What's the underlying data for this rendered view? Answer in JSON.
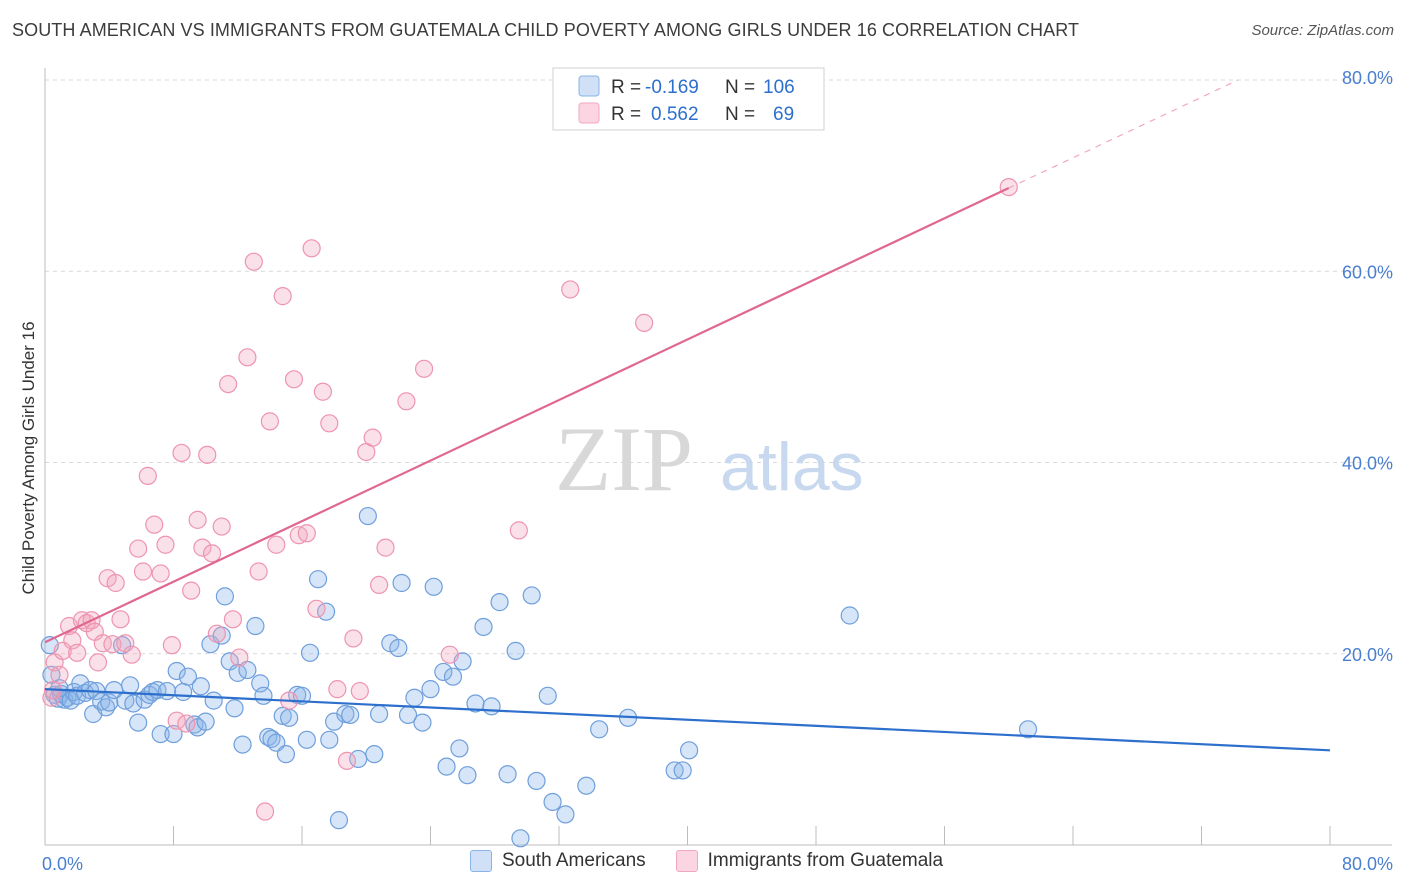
{
  "header": {
    "title": "SOUTH AMERICAN VS IMMIGRANTS FROM GUATEMALA CHILD POVERTY AMONG GIRLS UNDER 16 CORRELATION CHART",
    "source": "Source: ZipAtlas.com"
  },
  "watermark": {
    "zip": "ZIP",
    "atlas": "atlas"
  },
  "stats": {
    "r_label": "R =",
    "n_label": "N =",
    "blue": {
      "r": "-0.169",
      "n": "106"
    },
    "pink": {
      "r": "0.562",
      "n": "69"
    }
  },
  "colors": {
    "blue": "#8ab4e8",
    "blue_line": "#2d6fcc",
    "pink": "#f2a7be",
    "pink_line": "#e06890",
    "tick_text": "#4a7fd0",
    "grid": "#d9d9d9"
  },
  "chart_data": {
    "type": "scatter",
    "title": "SOUTH AMERICAN VS IMMIGRANTS FROM GUATEMALA CHILD POVERTY AMONG GIRLS UNDER 16 CORRELATION CHART",
    "xlabel": "",
    "ylabel": "Child Poverty Among Girls Under 16",
    "xlim": [
      0,
      80
    ],
    "ylim": [
      0,
      80
    ],
    "x_ticks": [
      "0.0%",
      "80.0%"
    ],
    "y_ticks": [
      "20.0%",
      "40.0%",
      "60.0%",
      "80.0%"
    ],
    "grid": true,
    "legend_position": "bottom",
    "series": [
      {
        "name": "South Americans",
        "color": "#8ab4e8",
        "trend": {
          "x": [
            0,
            80
          ],
          "y": [
            16.3,
            9.9
          ]
        },
        "points": [
          [
            0.3,
            20.9
          ],
          [
            0.4,
            17.8
          ],
          [
            0.6,
            15.7
          ],
          [
            0.8,
            15.3
          ],
          [
            1.0,
            15.8
          ],
          [
            1.2,
            15.2
          ],
          [
            1.4,
            15.4
          ],
          [
            1.6,
            15.1
          ],
          [
            1.8,
            16.0
          ],
          [
            2.0,
            15.6
          ],
          [
            2.2,
            16.9
          ],
          [
            2.5,
            15.9
          ],
          [
            2.8,
            16.2
          ],
          [
            3.0,
            13.7
          ],
          [
            3.2,
            16.1
          ],
          [
            3.5,
            15.0
          ],
          [
            3.8,
            14.4
          ],
          [
            4.0,
            14.9
          ],
          [
            4.3,
            16.2
          ],
          [
            4.8,
            20.9
          ],
          [
            5.0,
            15.1
          ],
          [
            5.3,
            16.7
          ],
          [
            5.5,
            14.8
          ],
          [
            5.8,
            12.8
          ],
          [
            6.2,
            15.2
          ],
          [
            6.5,
            15.7
          ],
          [
            6.7,
            16.0
          ],
          [
            7.0,
            16.2
          ],
          [
            7.2,
            11.6
          ],
          [
            7.6,
            16.1
          ],
          [
            8.0,
            11.6
          ],
          [
            8.2,
            18.2
          ],
          [
            8.6,
            16.0
          ],
          [
            8.9,
            17.6
          ],
          [
            9.3,
            12.6
          ],
          [
            9.5,
            12.3
          ],
          [
            9.7,
            16.6
          ],
          [
            10.0,
            12.9
          ],
          [
            10.3,
            21.0
          ],
          [
            10.5,
            15.1
          ],
          [
            11.0,
            21.9
          ],
          [
            11.2,
            26.0
          ],
          [
            11.5,
            19.2
          ],
          [
            11.8,
            14.3
          ],
          [
            12.0,
            18.0
          ],
          [
            12.3,
            10.5
          ],
          [
            12.6,
            18.3
          ],
          [
            13.1,
            22.9
          ],
          [
            13.4,
            16.9
          ],
          [
            13.6,
            15.6
          ],
          [
            13.9,
            11.3
          ],
          [
            14.1,
            11.1
          ],
          [
            14.4,
            10.7
          ],
          [
            14.8,
            13.5
          ],
          [
            15.0,
            9.5
          ],
          [
            15.2,
            13.3
          ],
          [
            15.7,
            15.7
          ],
          [
            16.0,
            15.6
          ],
          [
            16.3,
            11.0
          ],
          [
            16.5,
            20.1
          ],
          [
            17.0,
            27.8
          ],
          [
            17.5,
            24.4
          ],
          [
            17.7,
            11.0
          ],
          [
            18.0,
            12.9
          ],
          [
            18.3,
            2.6
          ],
          [
            18.7,
            13.7
          ],
          [
            19.0,
            13.6
          ],
          [
            19.5,
            9.0
          ],
          [
            20.1,
            34.4
          ],
          [
            20.5,
            9.5
          ],
          [
            20.8,
            13.7
          ],
          [
            21.5,
            21.1
          ],
          [
            22.0,
            20.6
          ],
          [
            22.2,
            27.4
          ],
          [
            22.6,
            13.6
          ],
          [
            23.0,
            15.4
          ],
          [
            23.5,
            12.8
          ],
          [
            24.0,
            16.3
          ],
          [
            24.2,
            27.0
          ],
          [
            24.8,
            18.1
          ],
          [
            25.0,
            8.2
          ],
          [
            25.4,
            17.6
          ],
          [
            25.8,
            10.1
          ],
          [
            26.0,
            19.2
          ],
          [
            26.3,
            7.3
          ],
          [
            26.8,
            14.8
          ],
          [
            27.3,
            22.8
          ],
          [
            27.8,
            14.5
          ],
          [
            28.3,
            25.4
          ],
          [
            28.8,
            7.4
          ],
          [
            29.3,
            20.3
          ],
          [
            29.6,
            0.7
          ],
          [
            30.3,
            26.1
          ],
          [
            30.6,
            6.7
          ],
          [
            31.3,
            15.6
          ],
          [
            31.6,
            4.5
          ],
          [
            32.4,
            3.2
          ],
          [
            33.7,
            6.2
          ],
          [
            34.5,
            12.1
          ],
          [
            36.3,
            13.3
          ],
          [
            39.2,
            7.8
          ],
          [
            39.7,
            7.8
          ],
          [
            40.1,
            9.9
          ],
          [
            50.1,
            24.0
          ],
          [
            61.2,
            12.1
          ],
          [
            0.9,
            16.4
          ]
        ]
      },
      {
        "name": "Immigrants from Guatemala",
        "color": "#f2a7be",
        "trend": {
          "x": [
            0,
            60
          ],
          "y": [
            21.2,
            68.7
          ]
        },
        "points": [
          [
            0.4,
            15.4
          ],
          [
            0.5,
            16.2
          ],
          [
            0.6,
            19.1
          ],
          [
            0.9,
            17.8
          ],
          [
            1.1,
            20.3
          ],
          [
            1.5,
            22.9
          ],
          [
            1.7,
            21.4
          ],
          [
            2.0,
            20.1
          ],
          [
            2.3,
            23.5
          ],
          [
            2.6,
            23.2
          ],
          [
            2.9,
            23.5
          ],
          [
            3.1,
            22.3
          ],
          [
            3.3,
            19.1
          ],
          [
            3.6,
            21.1
          ],
          [
            3.9,
            27.9
          ],
          [
            4.2,
            21.0
          ],
          [
            4.4,
            27.4
          ],
          [
            4.7,
            23.6
          ],
          [
            5.0,
            21.1
          ],
          [
            5.4,
            19.9
          ],
          [
            5.8,
            31.0
          ],
          [
            6.1,
            28.6
          ],
          [
            6.4,
            38.6
          ],
          [
            6.8,
            33.5
          ],
          [
            7.2,
            28.4
          ],
          [
            7.5,
            31.4
          ],
          [
            7.9,
            20.9
          ],
          [
            8.2,
            13.0
          ],
          [
            8.5,
            41.0
          ],
          [
            8.8,
            12.7
          ],
          [
            9.1,
            26.6
          ],
          [
            9.5,
            34.0
          ],
          [
            9.8,
            31.1
          ],
          [
            10.1,
            40.8
          ],
          [
            10.4,
            30.5
          ],
          [
            10.7,
            22.1
          ],
          [
            11.0,
            33.3
          ],
          [
            11.4,
            48.2
          ],
          [
            11.7,
            23.6
          ],
          [
            12.1,
            19.6
          ],
          [
            12.6,
            51.0
          ],
          [
            13.0,
            61.0
          ],
          [
            13.3,
            28.6
          ],
          [
            13.7,
            3.5
          ],
          [
            14.0,
            44.3
          ],
          [
            14.4,
            31.4
          ],
          [
            14.8,
            57.4
          ],
          [
            15.2,
            15.1
          ],
          [
            15.5,
            48.7
          ],
          [
            15.8,
            32.4
          ],
          [
            16.3,
            32.6
          ],
          [
            16.6,
            62.4
          ],
          [
            16.9,
            24.7
          ],
          [
            17.3,
            47.4
          ],
          [
            17.7,
            44.1
          ],
          [
            18.2,
            16.3
          ],
          [
            18.8,
            8.8
          ],
          [
            19.2,
            21.6
          ],
          [
            19.6,
            16.1
          ],
          [
            20.0,
            41.1
          ],
          [
            20.4,
            42.6
          ],
          [
            20.8,
            27.2
          ],
          [
            21.2,
            31.1
          ],
          [
            22.5,
            46.4
          ],
          [
            23.6,
            49.8
          ],
          [
            25.2,
            19.9
          ],
          [
            29.5,
            32.9
          ],
          [
            32.7,
            58.1
          ],
          [
            37.3,
            54.6
          ]
        ]
      }
    ],
    "extra_point_pink": [
      60.0,
      68.8
    ]
  },
  "legend": {
    "blue_label": "South Americans",
    "pink_label": "Immigrants from Guatemala"
  }
}
